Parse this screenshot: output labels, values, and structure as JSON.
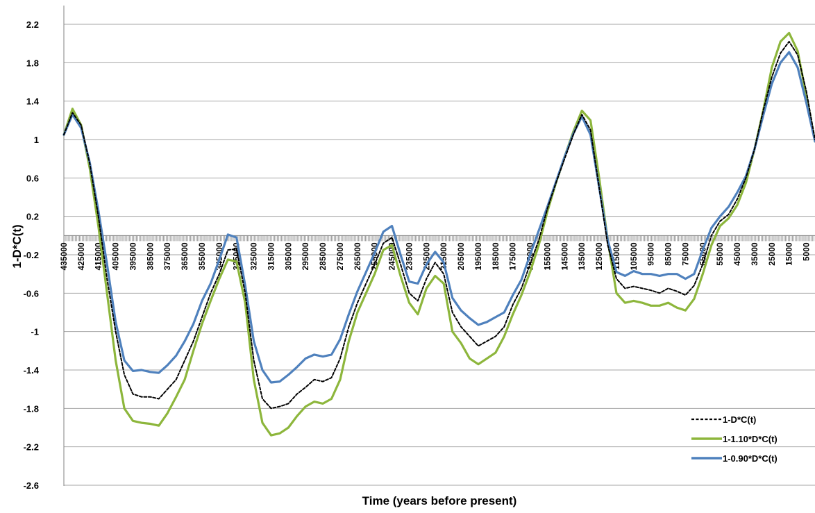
{
  "chart_data": {
    "type": "line",
    "title": "",
    "xlabel": "Time (years before present)",
    "ylabel": "1-D*C(t)",
    "xlim": [
      435000,
      0
    ],
    "ylim": [
      -2.6,
      2.4
    ],
    "grid": true,
    "legend_position": "bottom-right",
    "yticks": [
      "2.2",
      "1.8",
      "1.4",
      "1",
      "0.6",
      "0.2",
      "-0.2",
      "-0.6",
      "-1",
      "-1.4",
      "-1.8",
      "-2.2",
      "-2.6"
    ],
    "ytick_values": [
      2.2,
      1.8,
      1.4,
      1,
      0.6,
      0.2,
      -0.2,
      -0.6,
      -1,
      -1.4,
      -1.8,
      -2.2,
      -2.6
    ],
    "xticks": [
      "435000",
      "425000",
      "415000",
      "405000",
      "395000",
      "385000",
      "375000",
      "365000",
      "355000",
      "345000",
      "335000",
      "325000",
      "315000",
      "305000",
      "295000",
      "285000",
      "275000",
      "265000",
      "255000",
      "245000",
      "235000",
      "225000",
      "215000",
      "205000",
      "195000",
      "185000",
      "175000",
      "165000",
      "155000",
      "145000",
      "135000",
      "125000",
      "115000",
      "105000",
      "95000",
      "85000",
      "75000",
      "65000",
      "55000",
      "45000",
      "35000",
      "25000",
      "15000",
      "5000"
    ],
    "xtick_values": [
      435000,
      425000,
      415000,
      405000,
      395000,
      385000,
      375000,
      365000,
      355000,
      345000,
      335000,
      325000,
      315000,
      305000,
      295000,
      285000,
      275000,
      265000,
      255000,
      245000,
      235000,
      225000,
      215000,
      205000,
      195000,
      185000,
      175000,
      165000,
      155000,
      145000,
      135000,
      125000,
      115000,
      105000,
      95000,
      85000,
      75000,
      65000,
      55000,
      45000,
      35000,
      25000,
      15000,
      5000
    ],
    "x": [
      435000,
      430000,
      425000,
      420000,
      415000,
      410000,
      405000,
      400000,
      395000,
      390000,
      385000,
      380000,
      375000,
      370000,
      365000,
      360000,
      355000,
      350000,
      345000,
      340000,
      335000,
      330000,
      325000,
      320000,
      315000,
      310000,
      305000,
      300000,
      295000,
      290000,
      285000,
      280000,
      275000,
      270000,
      265000,
      260000,
      255000,
      250000,
      245000,
      240000,
      235000,
      230000,
      225000,
      220000,
      215000,
      210000,
      205000,
      200000,
      195000,
      190000,
      185000,
      180000,
      175000,
      170000,
      165000,
      160000,
      155000,
      150000,
      145000,
      140000,
      135000,
      130000,
      125000,
      120000,
      115000,
      110000,
      105000,
      100000,
      95000,
      90000,
      85000,
      80000,
      75000,
      70000,
      65000,
      60000,
      55000,
      50000,
      45000,
      40000,
      35000,
      30000,
      25000,
      20000,
      15000,
      10000,
      5000,
      0
    ],
    "series": [
      {
        "name": "1-D*C(t)",
        "color": "#000000",
        "dash": true,
        "values": [
          1.05,
          1.28,
          1.15,
          0.75,
          0.2,
          -0.45,
          -1.0,
          -1.45,
          -1.65,
          -1.68,
          -1.68,
          -1.7,
          -1.6,
          -1.5,
          -1.3,
          -1.1,
          -0.85,
          -0.6,
          -0.4,
          -0.15,
          -0.14,
          -0.6,
          -1.3,
          -1.7,
          -1.8,
          -1.78,
          -1.75,
          -1.65,
          -1.58,
          -1.5,
          -1.52,
          -1.48,
          -1.28,
          -0.95,
          -0.7,
          -0.5,
          -0.3,
          -0.08,
          -0.02,
          -0.3,
          -0.6,
          -0.68,
          -0.45,
          -0.28,
          -0.4,
          -0.8,
          -0.95,
          -1.05,
          -1.15,
          -1.1,
          -1.05,
          -0.95,
          -0.72,
          -0.55,
          -0.3,
          -0.05,
          0.28,
          0.55,
          0.8,
          1.05,
          1.26,
          1.1,
          0.5,
          -0.1,
          -0.45,
          -0.55,
          -0.53,
          -0.55,
          -0.57,
          -0.6,
          -0.55,
          -0.58,
          -0.62,
          -0.52,
          -0.3,
          0.0,
          0.15,
          0.22,
          0.38,
          0.6,
          0.9,
          1.3,
          1.65,
          1.9,
          2.02,
          1.88,
          1.5,
          1.0
        ]
      },
      {
        "name": "1-1.10*D*C(t)",
        "color": "#8DB63C",
        "dash": false,
        "values": [
          1.05,
          1.32,
          1.15,
          0.7,
          0.1,
          -0.6,
          -1.3,
          -1.8,
          -1.93,
          -1.95,
          -1.96,
          -1.98,
          -1.85,
          -1.68,
          -1.5,
          -1.2,
          -0.92,
          -0.68,
          -0.45,
          -0.25,
          -0.27,
          -0.7,
          -1.5,
          -1.95,
          -2.08,
          -2.06,
          -2.0,
          -1.88,
          -1.78,
          -1.73,
          -1.75,
          -1.7,
          -1.5,
          -1.1,
          -0.8,
          -0.6,
          -0.4,
          -0.15,
          -0.1,
          -0.42,
          -0.7,
          -0.82,
          -0.55,
          -0.42,
          -0.5,
          -1.0,
          -1.12,
          -1.28,
          -1.34,
          -1.28,
          -1.22,
          -1.05,
          -0.82,
          -0.62,
          -0.38,
          -0.1,
          0.25,
          0.55,
          0.82,
          1.08,
          1.3,
          1.2,
          0.6,
          -0.05,
          -0.6,
          -0.7,
          -0.68,
          -0.7,
          -0.73,
          -0.73,
          -0.7,
          -0.75,
          -0.78,
          -0.66,
          -0.4,
          -0.1,
          0.1,
          0.18,
          0.32,
          0.55,
          0.9,
          1.3,
          1.75,
          2.02,
          2.11,
          1.92,
          1.45,
          0.98
        ]
      },
      {
        "name": "1-0.90*D*C(t)",
        "color": "#4F81BD",
        "dash": false,
        "values": [
          1.05,
          1.26,
          1.12,
          0.76,
          0.26,
          -0.3,
          -0.9,
          -1.3,
          -1.41,
          -1.4,
          -1.42,
          -1.43,
          -1.35,
          -1.25,
          -1.1,
          -0.92,
          -0.68,
          -0.5,
          -0.25,
          0.01,
          -0.02,
          -0.52,
          -1.1,
          -1.4,
          -1.53,
          -1.52,
          -1.45,
          -1.37,
          -1.28,
          -1.24,
          -1.26,
          -1.24,
          -1.08,
          -0.82,
          -0.58,
          -0.38,
          -0.18,
          0.04,
          0.1,
          -0.2,
          -0.48,
          -0.5,
          -0.3,
          -0.17,
          -0.28,
          -0.65,
          -0.78,
          -0.86,
          -0.93,
          -0.9,
          -0.85,
          -0.8,
          -0.62,
          -0.46,
          -0.2,
          0.05,
          0.3,
          0.56,
          0.82,
          1.06,
          1.24,
          1.05,
          0.5,
          -0.05,
          -0.38,
          -0.42,
          -0.37,
          -0.4,
          -0.4,
          -0.42,
          -0.4,
          -0.4,
          -0.45,
          -0.4,
          -0.15,
          0.08,
          0.2,
          0.3,
          0.45,
          0.62,
          0.9,
          1.25,
          1.58,
          1.8,
          1.91,
          1.75,
          1.38,
          0.98
        ]
      }
    ]
  }
}
